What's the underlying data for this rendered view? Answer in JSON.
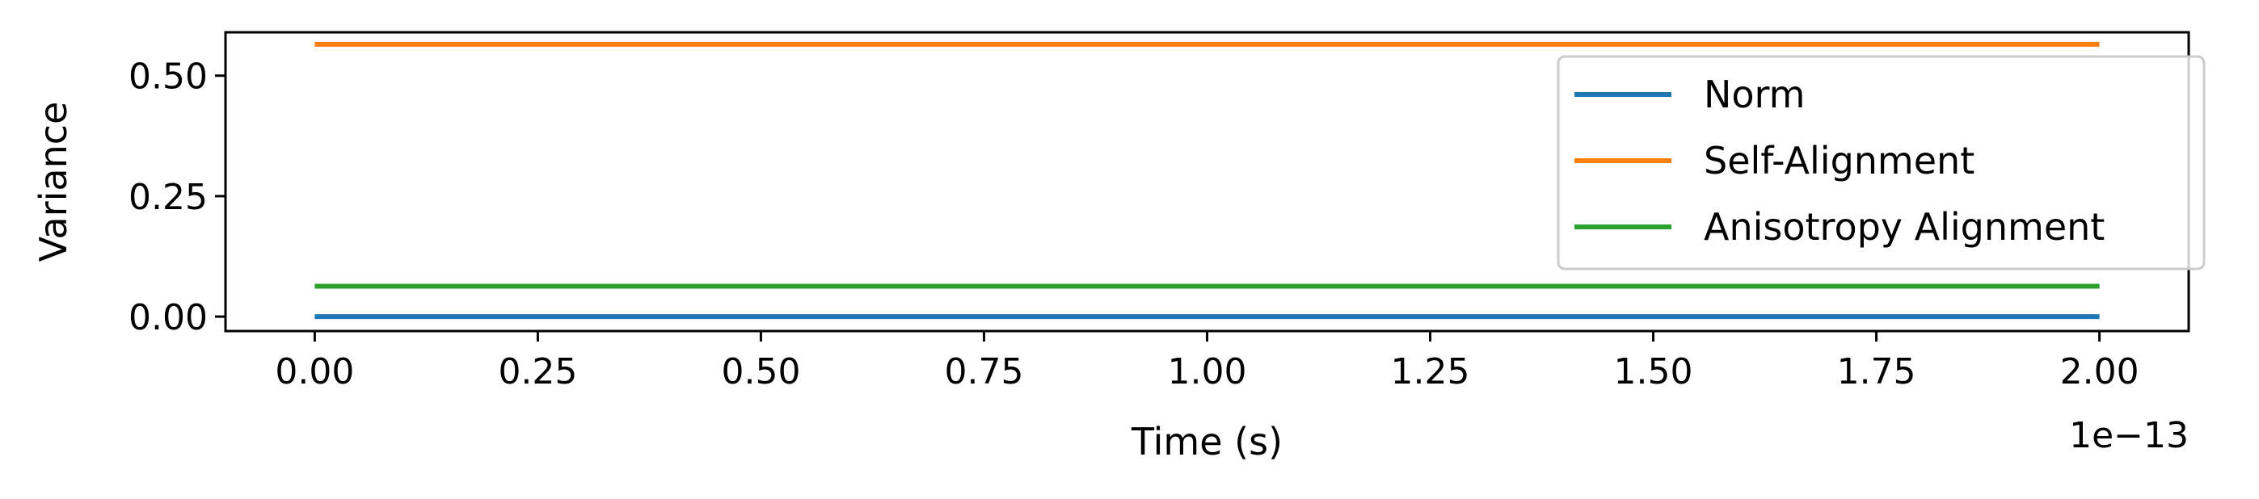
{
  "chart_data": {
    "type": "line",
    "xlabel": "Time (s)",
    "ylabel": "Variance",
    "x_offset_label": "1e−13",
    "xlim": [
      -0.1,
      2.1
    ],
    "ylim": [
      -0.03,
      0.59
    ],
    "x_ticks": [
      0.0,
      0.25,
      0.5,
      0.75,
      1.0,
      1.25,
      1.5,
      1.75,
      2.0
    ],
    "x_tick_labels": [
      "0.00",
      "0.25",
      "0.50",
      "0.75",
      "1.00",
      "1.25",
      "1.50",
      "1.75",
      "2.00"
    ],
    "y_ticks": [
      0.0,
      0.25,
      0.5
    ],
    "y_tick_labels": [
      "0.00",
      "0.25",
      "0.50"
    ],
    "x": [
      0.0,
      2.0
    ],
    "series": [
      {
        "name": "Norm",
        "color": "#1f77b4",
        "values": [
          0.0,
          0.0
        ]
      },
      {
        "name": "Self-Alignment",
        "color": "#ff7f0e",
        "values": [
          0.565,
          0.565
        ]
      },
      {
        "name": "Anisotropy Alignment",
        "color": "#2ca02c",
        "values": [
          0.063,
          0.063
        ]
      }
    ],
    "legend_position": "upper right",
    "grid": false
  }
}
